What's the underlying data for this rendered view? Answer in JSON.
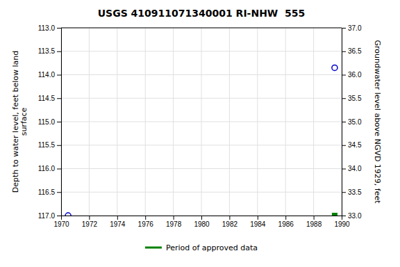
{
  "chart_data": {
    "type": "scatter",
    "title": "USGS 410911071340001 RI-NHW  555",
    "ylabel": "Depth to water level, feet below land\nsurface",
    "y2label": "Groundwater level above NGVD 1929, feet",
    "xlim": [
      1970,
      1990
    ],
    "xticks": [
      1970,
      1972,
      1974,
      1976,
      1978,
      1980,
      1982,
      1984,
      1986,
      1988,
      1990
    ],
    "ylim": [
      117.0,
      113.0
    ],
    "yticks": [
      {
        "value": 113.0,
        "label": "113.0"
      },
      {
        "value": 113.5,
        "label": "113.5"
      },
      {
        "value": 114.0,
        "label": "114.0"
      },
      {
        "value": 114.5,
        "label": "114.5"
      },
      {
        "value": 115.0,
        "label": "115.0"
      },
      {
        "value": 115.5,
        "label": "115.5"
      },
      {
        "value": 116.0,
        "label": "116.0"
      },
      {
        "value": 116.5,
        "label": "116.5"
      },
      {
        "value": 117.0,
        "label": "117.0"
      }
    ],
    "y2lim": [
      33.0,
      37.0
    ],
    "y2ticks": [
      {
        "value": 37.0,
        "label": "37.0"
      },
      {
        "value": 36.5,
        "label": "36.5"
      },
      {
        "value": 36.0,
        "label": "36.0"
      },
      {
        "value": 35.5,
        "label": "35.5"
      },
      {
        "value": 35.0,
        "label": "35.0"
      },
      {
        "value": 34.5,
        "label": "34.5"
      },
      {
        "value": 34.0,
        "label": "34.0"
      },
      {
        "value": 33.5,
        "label": "33.5"
      },
      {
        "value": 33.0,
        "label": "33.0"
      }
    ],
    "grid": true,
    "legend": "bottom",
    "series": [
      {
        "marker": "circle",
        "color": "#0000cc",
        "x": [
          1970.5,
          1989.5
        ],
        "values": [
          117.0,
          113.85
        ]
      },
      {
        "name": "Period of approved data",
        "marker": "square",
        "color": "#008000",
        "x": [
          1989.5
        ],
        "values": [
          117.0
        ]
      }
    ]
  }
}
